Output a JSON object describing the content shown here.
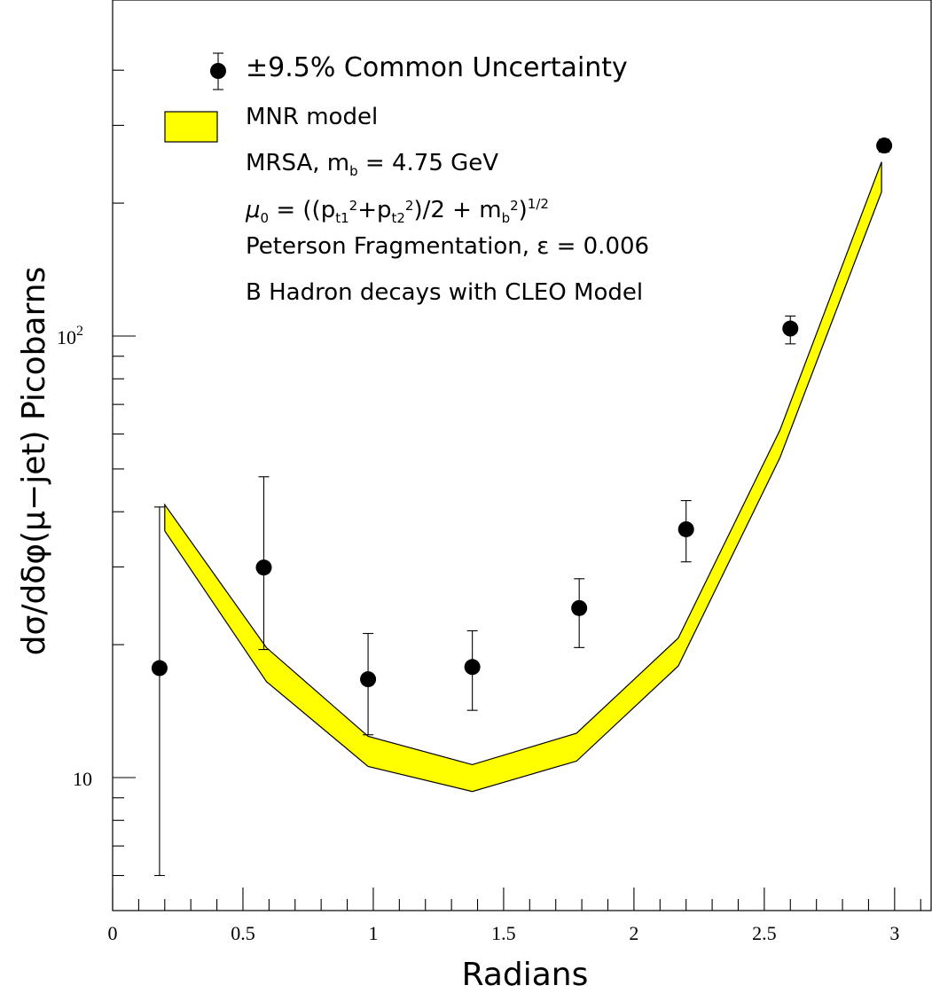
{
  "chart_data": {
    "type": "scatter",
    "title": "",
    "xlabel": "Radians",
    "ylabel": "dσ/dδφ(μ−jet) Picobarns",
    "xlim": [
      0,
      3.14
    ],
    "ylim": [
      6,
      400
    ],
    "yscale": "log",
    "x_ticks": [
      {
        "value": 0,
        "label": "0"
      },
      {
        "value": 0.5,
        "label": "0.5"
      },
      {
        "value": 1,
        "label": "1"
      },
      {
        "value": 1.5,
        "label": "1.5"
      },
      {
        "value": 2,
        "label": "2"
      },
      {
        "value": 2.5,
        "label": "2.5"
      },
      {
        "value": 3,
        "label": "3"
      }
    ],
    "y_tick_labels": [
      {
        "value": 10,
        "base": "10",
        "exp": ""
      },
      {
        "value": 100,
        "base": "10",
        "exp": "2"
      }
    ],
    "series": [
      {
        "name": "±9.5% Common Uncertainty",
        "kind": "points",
        "x": [
          0.18,
          0.58,
          0.98,
          1.38,
          1.79,
          2.2,
          2.6,
          2.96
        ],
        "y": [
          17.7,
          29.9,
          16.7,
          17.8,
          24.2,
          36.5,
          104,
          270
        ],
        "y_low": [
          6.0,
          19.5,
          12.5,
          14.2,
          19.7,
          30.8,
          96,
          261
        ],
        "y_high": [
          41.0,
          48.0,
          21.2,
          21.5,
          28.2,
          42.4,
          111,
          279
        ]
      },
      {
        "name": "MNR model",
        "kind": "band",
        "x": [
          0.2,
          0.59,
          0.98,
          1.38,
          1.78,
          2.17,
          2.56,
          2.95
        ],
        "upper": [
          41.5,
          19.7,
          12.4,
          10.7,
          12.6,
          20.7,
          61.2,
          248
        ],
        "lower": [
          36.2,
          16.5,
          10.6,
          9.3,
          10.9,
          17.9,
          53.0,
          212
        ]
      }
    ],
    "legend": {
      "placement": "top",
      "lines": [
        "MRSA, m_b = 4.75 GeV",
        "μ_0 = ((p_t1^2+p_t2^2)/2 + m_b^2)^1/2",
        "Peterson Fragmentation, ε = 0.006",
        "B Hadron decays with CLEO Model"
      ]
    },
    "grid": false
  }
}
